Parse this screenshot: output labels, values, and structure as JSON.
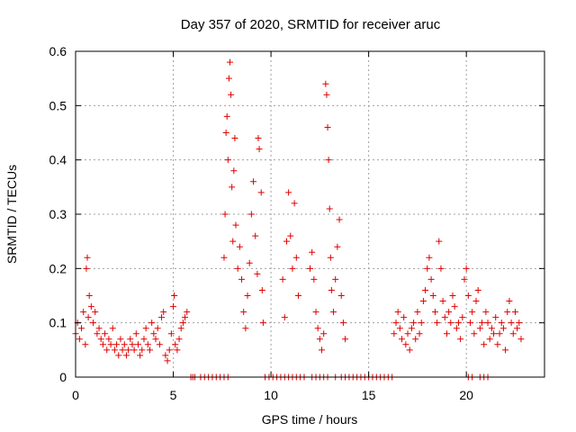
{
  "chart_data": {
    "type": "scatter",
    "title": "Day 357 of 2020, SRMTID for receiver aruc",
    "xlabel": "GPS time / hours",
    "ylabel": "SRMTID / TECUs",
    "xlim": [
      0,
      24
    ],
    "ylim": [
      0,
      0.6
    ],
    "xticks": [
      0,
      5,
      10,
      15,
      20
    ],
    "xtick_labels": [
      "0",
      "5",
      "10",
      "15",
      "20"
    ],
    "yticks": [
      0,
      0.1,
      0.2,
      0.3,
      0.4,
      0.5,
      0.6
    ],
    "ytick_labels": [
      "0",
      "0.1",
      "0.2",
      "0.3",
      "0.4",
      "0.5",
      "0.6"
    ],
    "grid": true,
    "marker": "plus",
    "color": "#e00000",
    "series": [
      {
        "name": "SRMTID",
        "points": [
          [
            0.0,
            0.08
          ],
          [
            0.1,
            0.1
          ],
          [
            0.2,
            0.07
          ],
          [
            0.3,
            0.09
          ],
          [
            0.4,
            0.12
          ],
          [
            0.5,
            0.06
          ],
          [
            0.55,
            0.2
          ],
          [
            0.6,
            0.22
          ],
          [
            0.65,
            0.11
          ],
          [
            0.7,
            0.15
          ],
          [
            0.8,
            0.13
          ],
          [
            0.9,
            0.1
          ],
          [
            1.0,
            0.12
          ],
          [
            1.1,
            0.08
          ],
          [
            1.2,
            0.09
          ],
          [
            1.3,
            0.07
          ],
          [
            1.4,
            0.06
          ],
          [
            1.5,
            0.08
          ],
          [
            1.6,
            0.05
          ],
          [
            1.7,
            0.07
          ],
          [
            1.8,
            0.06
          ],
          [
            1.9,
            0.09
          ],
          [
            2.0,
            0.05
          ],
          [
            2.1,
            0.06
          ],
          [
            2.2,
            0.04
          ],
          [
            2.3,
            0.07
          ],
          [
            2.4,
            0.05
          ],
          [
            2.5,
            0.06
          ],
          [
            2.6,
            0.04
          ],
          [
            2.7,
            0.05
          ],
          [
            2.8,
            0.07
          ],
          [
            2.9,
            0.06
          ],
          [
            3.0,
            0.05
          ],
          [
            3.1,
            0.08
          ],
          [
            3.2,
            0.06
          ],
          [
            3.3,
            0.04
          ],
          [
            3.4,
            0.05
          ],
          [
            3.5,
            0.07
          ],
          [
            3.6,
            0.09
          ],
          [
            3.7,
            0.06
          ],
          [
            3.8,
            0.05
          ],
          [
            3.9,
            0.1
          ],
          [
            4.0,
            0.08
          ],
          [
            4.1,
            0.07
          ],
          [
            4.2,
            0.09
          ],
          [
            4.3,
            0.06
          ],
          [
            4.4,
            0.11
          ],
          [
            4.5,
            0.12
          ],
          [
            4.6,
            0.04
          ],
          [
            4.7,
            0.03
          ],
          [
            4.8,
            0.05
          ],
          [
            4.9,
            0.08
          ],
          [
            5.0,
            0.13
          ],
          [
            5.05,
            0.15
          ],
          [
            5.1,
            0.06
          ],
          [
            5.2,
            0.05
          ],
          [
            5.3,
            0.07
          ],
          [
            5.4,
            0.09
          ],
          [
            5.5,
            0.1
          ],
          [
            5.6,
            0.11
          ],
          [
            5.7,
            0.12
          ],
          [
            5.9,
            0.0
          ],
          [
            6.0,
            0.0
          ],
          [
            6.1,
            0.0
          ],
          [
            6.4,
            0.0
          ],
          [
            6.6,
            0.0
          ],
          [
            6.8,
            0.0
          ],
          [
            7.0,
            0.0
          ],
          [
            7.2,
            0.0
          ],
          [
            7.4,
            0.0
          ],
          [
            7.6,
            0.0
          ],
          [
            7.8,
            0.0
          ],
          [
            7.6,
            0.22
          ],
          [
            7.65,
            0.3
          ],
          [
            7.7,
            0.45
          ],
          [
            7.75,
            0.48
          ],
          [
            7.8,
            0.4
          ],
          [
            7.85,
            0.55
          ],
          [
            7.9,
            0.58
          ],
          [
            7.95,
            0.52
          ],
          [
            8.0,
            0.35
          ],
          [
            8.05,
            0.25
          ],
          [
            8.1,
            0.38
          ],
          [
            8.15,
            0.44
          ],
          [
            8.2,
            0.28
          ],
          [
            8.3,
            0.2
          ],
          [
            8.4,
            0.24
          ],
          [
            8.5,
            0.18
          ],
          [
            8.6,
            0.12
          ],
          [
            8.7,
            0.09
          ],
          [
            8.8,
            0.15
          ],
          [
            8.9,
            0.21
          ],
          [
            9.0,
            0.3
          ],
          [
            9.1,
            0.36
          ],
          [
            9.2,
            0.26
          ],
          [
            9.3,
            0.19
          ],
          [
            9.35,
            0.44
          ],
          [
            9.4,
            0.42
          ],
          [
            9.5,
            0.34
          ],
          [
            9.55,
            0.16
          ],
          [
            9.6,
            0.1
          ],
          [
            9.7,
            0.0
          ],
          [
            9.9,
            0.0
          ],
          [
            10.1,
            0.0
          ],
          [
            10.3,
            0.0
          ],
          [
            10.5,
            0.0
          ],
          [
            10.7,
            0.0
          ],
          [
            10.9,
            0.0
          ],
          [
            11.1,
            0.0
          ],
          [
            11.3,
            0.0
          ],
          [
            11.5,
            0.0
          ],
          [
            11.7,
            0.0
          ],
          [
            10.6,
            0.18
          ],
          [
            10.7,
            0.11
          ],
          [
            10.8,
            0.25
          ],
          [
            10.9,
            0.34
          ],
          [
            11.0,
            0.26
          ],
          [
            11.1,
            0.2
          ],
          [
            11.2,
            0.32
          ],
          [
            11.3,
            0.22
          ],
          [
            11.4,
            0.15
          ],
          [
            12.0,
            0.2
          ],
          [
            12.1,
            0.23
          ],
          [
            12.2,
            0.18
          ],
          [
            12.3,
            0.12
          ],
          [
            12.4,
            0.09
          ],
          [
            12.5,
            0.07
          ],
          [
            12.6,
            0.05
          ],
          [
            12.7,
            0.08
          ],
          [
            12.1,
            0.0
          ],
          [
            12.3,
            0.0
          ],
          [
            12.5,
            0.0
          ],
          [
            12.7,
            0.0
          ],
          [
            12.9,
            0.0
          ],
          [
            12.8,
            0.54
          ],
          [
            12.85,
            0.52
          ],
          [
            12.9,
            0.46
          ],
          [
            12.95,
            0.4
          ],
          [
            13.0,
            0.31
          ],
          [
            13.05,
            0.22
          ],
          [
            13.1,
            0.16
          ],
          [
            13.2,
            0.12
          ],
          [
            13.3,
            0.18
          ],
          [
            13.4,
            0.24
          ],
          [
            13.5,
            0.29
          ],
          [
            13.6,
            0.15
          ],
          [
            13.7,
            0.1
          ],
          [
            13.8,
            0.07
          ],
          [
            13.3,
            0.0
          ],
          [
            13.6,
            0.0
          ],
          [
            13.8,
            0.0
          ],
          [
            14.0,
            0.0
          ],
          [
            14.2,
            0.0
          ],
          [
            14.4,
            0.0
          ],
          [
            14.6,
            0.0
          ],
          [
            14.8,
            0.0
          ],
          [
            15.0,
            0.0
          ],
          [
            15.2,
            0.0
          ],
          [
            15.4,
            0.0
          ],
          [
            15.6,
            0.0
          ],
          [
            15.8,
            0.0
          ],
          [
            16.0,
            0.0
          ],
          [
            16.2,
            0.0
          ],
          [
            16.3,
            0.08
          ],
          [
            16.4,
            0.1
          ],
          [
            16.5,
            0.12
          ],
          [
            16.6,
            0.09
          ],
          [
            16.7,
            0.07
          ],
          [
            16.8,
            0.11
          ],
          [
            16.9,
            0.06
          ],
          [
            17.0,
            0.08
          ],
          [
            17.1,
            0.05
          ],
          [
            17.2,
            0.09
          ],
          [
            17.3,
            0.1
          ],
          [
            17.4,
            0.07
          ],
          [
            17.5,
            0.12
          ],
          [
            17.6,
            0.08
          ],
          [
            17.7,
            0.1
          ],
          [
            17.8,
            0.14
          ],
          [
            17.9,
            0.16
          ],
          [
            18.0,
            0.2
          ],
          [
            18.1,
            0.22
          ],
          [
            18.2,
            0.18
          ],
          [
            18.3,
            0.15
          ],
          [
            18.4,
            0.12
          ],
          [
            18.5,
            0.1
          ],
          [
            18.6,
            0.25
          ],
          [
            18.7,
            0.2
          ],
          [
            18.8,
            0.14
          ],
          [
            18.9,
            0.11
          ],
          [
            19.0,
            0.08
          ],
          [
            19.1,
            0.12
          ],
          [
            19.2,
            0.1
          ],
          [
            19.3,
            0.15
          ],
          [
            19.4,
            0.13
          ],
          [
            19.5,
            0.09
          ],
          [
            19.6,
            0.1
          ],
          [
            19.7,
            0.07
          ],
          [
            19.8,
            0.11
          ],
          [
            19.9,
            0.18
          ],
          [
            20.0,
            0.2
          ],
          [
            20.1,
            0.15
          ],
          [
            20.2,
            0.1
          ],
          [
            20.3,
            0.12
          ],
          [
            20.4,
            0.08
          ],
          [
            20.5,
            0.14
          ],
          [
            20.6,
            0.16
          ],
          [
            20.7,
            0.09
          ],
          [
            20.8,
            0.1
          ],
          [
            20.9,
            0.06
          ],
          [
            21.0,
            0.12
          ],
          [
            21.1,
            0.1
          ],
          [
            21.2,
            0.07
          ],
          [
            21.3,
            0.09
          ],
          [
            21.4,
            0.08
          ],
          [
            21.5,
            0.11
          ],
          [
            21.6,
            0.06
          ],
          [
            21.7,
            0.08
          ],
          [
            21.8,
            0.1
          ],
          [
            21.9,
            0.09
          ],
          [
            22.0,
            0.05
          ],
          [
            22.1,
            0.12
          ],
          [
            22.2,
            0.14
          ],
          [
            22.3,
            0.1
          ],
          [
            22.4,
            0.08
          ],
          [
            22.5,
            0.12
          ],
          [
            22.6,
            0.09
          ],
          [
            22.7,
            0.1
          ],
          [
            22.8,
            0.07
          ],
          [
            20.1,
            0.0
          ],
          [
            20.3,
            0.0
          ],
          [
            20.7,
            0.0
          ],
          [
            20.9,
            0.0
          ],
          [
            21.1,
            0.0
          ]
        ]
      }
    ]
  }
}
